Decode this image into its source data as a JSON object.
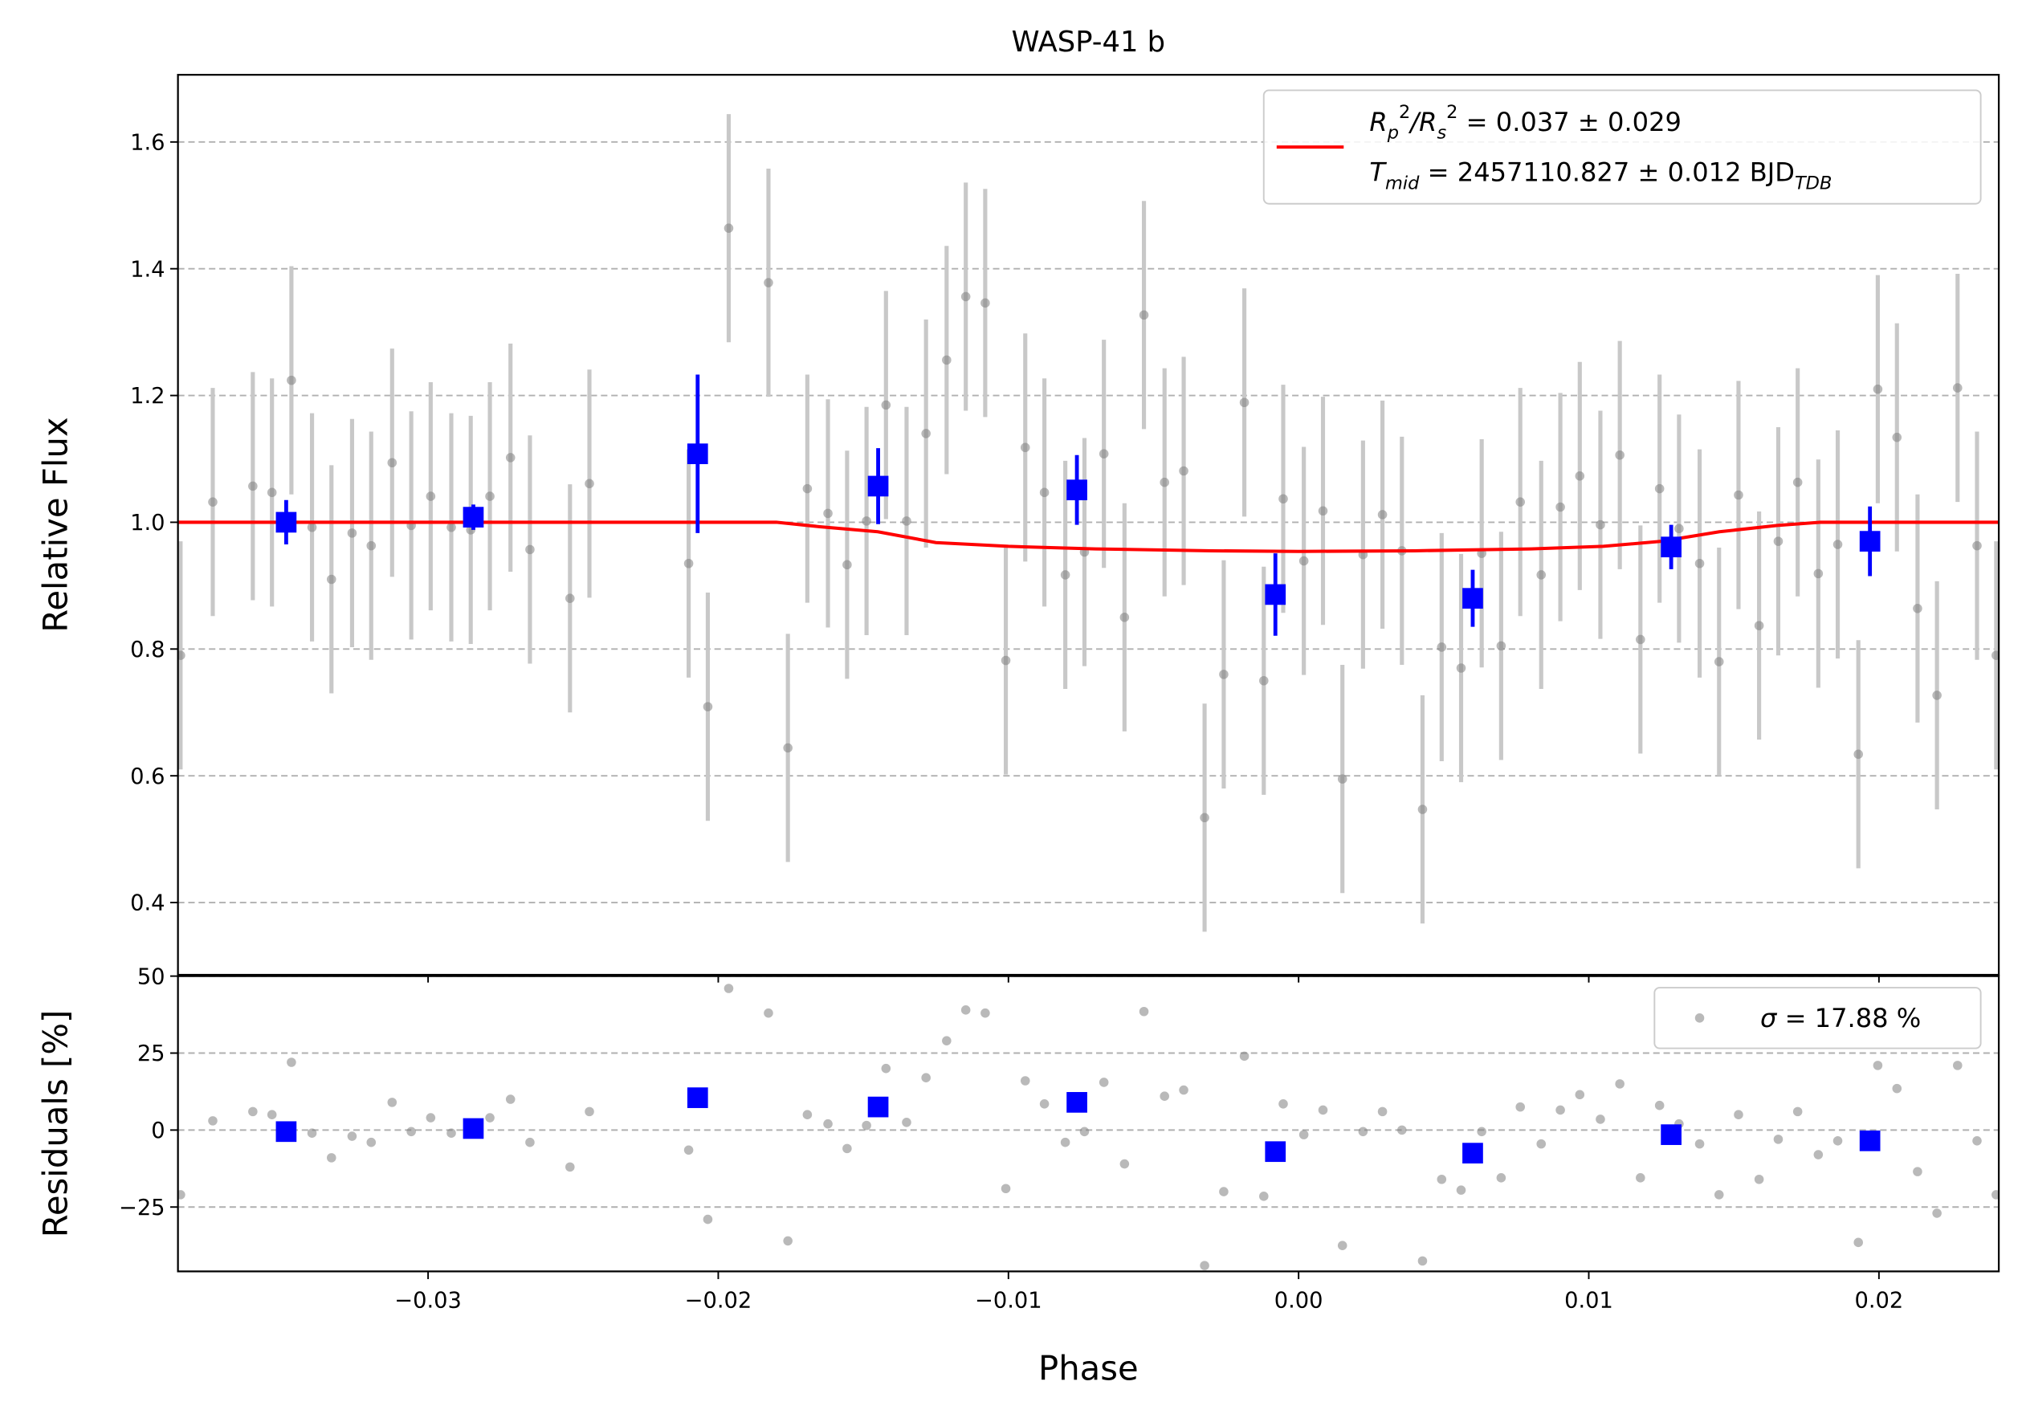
{
  "chart_data": [
    {
      "type": "scatter",
      "title": "WASP-41 b",
      "ylabel": "Relative Flux",
      "xlim": [
        -0.03862,
        0.02413
      ],
      "ylim": [
        0.286,
        1.706
      ],
      "yticks": [
        0.4,
        0.6,
        0.8,
        {
          "value": 1,
          "label": "1.0"
        },
        1.2,
        1.4,
        1.6
      ],
      "grid": true,
      "legend": "upper right",
      "series": [
        {
          "color": "#808080",
          "marker": "circle",
          "x": [
            -0.03853,
            -0.03742,
            -0.03604,
            -0.03538,
            -0.03471,
            -0.034,
            -0.03333,
            -0.03262,
            -0.03196,
            -0.03124,
            -0.03058,
            -0.02991,
            -0.0292,
            -0.02853,
            -0.02787,
            -0.02716,
            -0.02649,
            -0.02511,
            -0.02444,
            -0.02102,
            -0.02036,
            -0.01964,
            -0.01827,
            -0.0176,
            -0.01693,
            -0.01622,
            -0.01556,
            -0.01489,
            -0.01422,
            -0.01351,
            -0.01284,
            -0.01213,
            -0.01147,
            -0.0108,
            -0.01009,
            -0.00942,
            -0.00876,
            -0.00804,
            -0.00738,
            -0.00671,
            -0.006,
            -0.00533,
            -0.00462,
            -0.00396,
            -0.00324,
            -0.00258,
            -0.00187,
            -0.0012,
            -0.00053,
            0.00018,
            0.00084,
            0.00151,
            0.00222,
            0.00289,
            0.00356,
            0.00427,
            0.00493,
            0.0056,
            0.00631,
            0.00698,
            0.00764,
            0.00836,
            0.00902,
            0.00969,
            0.0104,
            0.01107,
            0.01178,
            0.01244,
            0.01311,
            0.01382,
            0.01449,
            0.01516,
            0.01587,
            0.01653,
            0.0172,
            0.01791,
            0.01858,
            0.01929,
            0.01996,
            0.02062,
            0.02133,
            0.022,
            0.02271,
            0.02338,
            0.02404
          ],
          "values": [
            0.79,
            1.032,
            1.057,
            1.047,
            1.224,
            0.992,
            0.91,
            0.983,
            0.963,
            1.094,
            0.995,
            1.041,
            0.992,
            0.988,
            1.041,
            1.102,
            0.957,
            0.88,
            1.061,
            0.935,
            0.709,
            1.464,
            1.378,
            0.644,
            1.053,
            1.014,
            0.933,
            1.002,
            1.185,
            1.002,
            1.14,
            1.256,
            1.356,
            1.346,
            0.782,
            1.118,
            1.047,
            0.917,
            0.953,
            1.108,
            0.85,
            1.327,
            1.063,
            1.081,
            0.534,
            0.76,
            1.189,
            0.75,
            1.037,
            0.939,
            1.018,
            0.595,
            0.949,
            1.012,
            0.955,
            0.547,
            0.803,
            0.77,
            0.951,
            0.805,
            1.032,
            0.917,
            1.024,
            1.073,
            0.996,
            1.106,
            0.815,
            1.053,
            0.99,
            0.935,
            0.78,
            1.043,
            0.837,
            0.97,
            1.063,
            0.919,
            0.965,
            0.634,
            1.21,
            1.134,
            0.864,
            0.727,
            1.212,
            0.963,
            0.79
          ],
          "errors": [
            0.18,
            0.18,
            0.18,
            0.18,
            0.18,
            0.18,
            0.18,
            0.18,
            0.18,
            0.18,
            0.18,
            0.18,
            0.18,
            0.18,
            0.18,
            0.18,
            0.18,
            0.18,
            0.18,
            0.18,
            0.18,
            0.18,
            0.18,
            0.18,
            0.18,
            0.18,
            0.18,
            0.18,
            0.18,
            0.18,
            0.18,
            0.18,
            0.18,
            0.18,
            0.18,
            0.18,
            0.18,
            0.18,
            0.18,
            0.18,
            0.18,
            0.18,
            0.18,
            0.18,
            0.18,
            0.18,
            0.18,
            0.18,
            0.18,
            0.18,
            0.18,
            0.18,
            0.18,
            0.18,
            0.18,
            0.18,
            0.18,
            0.18,
            0.18,
            0.18,
            0.18,
            0.18,
            0.18,
            0.18,
            0.18,
            0.18,
            0.18,
            0.18,
            0.18,
            0.18,
            0.18,
            0.18,
            0.18,
            0.18,
            0.18,
            0.18,
            0.18,
            0.18,
            0.18,
            0.18,
            0.18,
            0.18,
            0.18,
            0.18,
            0.18
          ]
        },
        {
          "type": "line",
          "color": "#ff0000",
          "x": [
            -0.03862,
            -0.018,
            -0.0165,
            -0.0145,
            -0.0125,
            -0.01,
            -0.007,
            -0.003,
            0,
            0.004,
            0.008,
            0.0105,
            0.0125,
            0.0145,
            0.0165,
            0.018,
            0.02413
          ],
          "values": [
            1,
            1,
            0.993,
            0.985,
            0.968,
            0.962,
            0.958,
            0.955,
            0.954,
            0.955,
            0.958,
            0.962,
            0.97,
            0.985,
            0.995,
            1,
            1
          ],
          "label_lines": [
            [
              {
                "text": "R",
                "style": "it"
              },
              {
                "text": "p",
                "style": "sub"
              },
              {
                "text": "2",
                "style": "sup"
              },
              {
                "text": "/",
                "style": "it"
              },
              {
                "text": "R",
                "style": "it"
              },
              {
                "text": "s",
                "style": "sub"
              },
              {
                "text": "2",
                "style": "sup"
              },
              {
                "text": " = 0.037 ± 0.029",
                "style": "rm"
              }
            ],
            [
              {
                "text": "T",
                "style": "it"
              },
              {
                "text": "mid",
                "style": "sub"
              },
              {
                "text": " = 2457110.827 ± 0.012 BJD",
                "style": "rm"
              },
              {
                "text": "TDB",
                "style": "sub"
              }
            ]
          ]
        },
        {
          "color": "#0000ff",
          "marker": "square",
          "x": [
            -0.03489,
            -0.02844,
            -0.02071,
            -0.01449,
            -0.00764,
            -0.0008,
            0.006,
            0.01284,
            0.01969
          ],
          "values": [
            1.0,
            1.008,
            1.108,
            1.057,
            1.051,
            0.886,
            0.88,
            0.961,
            0.97
          ],
          "errors": [
            0.035,
            0.02,
            0.125,
            0.06,
            0.055,
            0.065,
            0.045,
            0.035,
            0.055
          ]
        }
      ]
    },
    {
      "type": "scatter",
      "ylabel": "Residuals [%]",
      "xlabel": "Phase",
      "xlim": [
        -0.03862,
        0.02413
      ],
      "ylim": [
        -45.9,
        50
      ],
      "xticks": [
        {
          "value": -0.03,
          "label": "−0.03"
        },
        {
          "value": -0.02,
          "label": "−0.02"
        },
        {
          "value": -0.01,
          "label": "−0.01"
        },
        {
          "value": 0,
          "label": "0.00"
        },
        0.01,
        0.02
      ],
      "yticks": [
        {
          "value": -25,
          "label": "−25"
        },
        0,
        25,
        50
      ],
      "grid": true,
      "legend": "upper right",
      "series": [
        {
          "color": "#808080",
          "marker": "circle",
          "x": [
            -0.03853,
            -0.03742,
            -0.03604,
            -0.03538,
            -0.03471,
            -0.034,
            -0.03333,
            -0.03262,
            -0.03196,
            -0.03124,
            -0.03058,
            -0.02991,
            -0.0292,
            -0.02853,
            -0.02787,
            -0.02716,
            -0.02649,
            -0.02511,
            -0.02444,
            -0.02102,
            -0.02036,
            -0.01964,
            -0.01827,
            -0.0176,
            -0.01693,
            -0.01622,
            -0.01556,
            -0.01489,
            -0.01422,
            -0.01351,
            -0.01284,
            -0.01213,
            -0.01147,
            -0.0108,
            -0.01009,
            -0.00942,
            -0.00876,
            -0.00804,
            -0.00738,
            -0.00671,
            -0.006,
            -0.00533,
            -0.00462,
            -0.00396,
            -0.00324,
            -0.00258,
            -0.00187,
            -0.0012,
            -0.00053,
            0.00018,
            0.00084,
            0.00151,
            0.00222,
            0.00289,
            0.00356,
            0.00427,
            0.00493,
            0.0056,
            0.00631,
            0.00698,
            0.00764,
            0.00836,
            0.00902,
            0.00969,
            0.0104,
            0.01107,
            0.01178,
            0.01244,
            0.01311,
            0.01382,
            0.01449,
            0.01516,
            0.01587,
            0.01653,
            0.0172,
            0.01791,
            0.01858,
            0.01929,
            0.01996,
            0.02062,
            0.02133,
            0.022,
            0.02271,
            0.02338,
            0.02404
          ],
          "values": [
            -21,
            3,
            6,
            5,
            22,
            -1,
            -9,
            -2,
            -4,
            9,
            -0.5,
            4,
            -1,
            -1,
            4,
            10,
            -4,
            -12,
            6,
            -6.5,
            -29,
            46,
            38,
            -36,
            5,
            2,
            -6,
            1.5,
            20,
            2.5,
            17,
            29,
            39,
            38,
            -19,
            16,
            8.5,
            -4,
            -0.5,
            15.5,
            -11,
            38.5,
            11,
            13,
            -44,
            -20,
            24,
            -21.5,
            8.5,
            -1.5,
            6.5,
            -37.5,
            -0.5,
            6,
            0,
            -42.5,
            -16,
            -19.5,
            -0.5,
            -15.5,
            7.5,
            -4.5,
            6.5,
            11.5,
            3.5,
            15,
            -15.5,
            8,
            2,
            -4.5,
            -21,
            5,
            -16,
            -3,
            6,
            -8,
            -3.5,
            -36.5,
            21,
            13.5,
            -13.5,
            -27,
            21,
            -3.5,
            -21
          ],
          "label_lines": [
            [
              {
                "text": "σ",
                "style": "it"
              },
              {
                "text": " = 17.88 %",
                "style": "rm"
              }
            ]
          ]
        },
        {
          "color": "#0000ff",
          "marker": "square",
          "x": [
            -0.03489,
            -0.02844,
            -0.02071,
            -0.01449,
            -0.00764,
            -0.0008,
            0.006,
            0.01284,
            0.01969
          ],
          "values": [
            -0.5,
            0.5,
            10.5,
            7.5,
            9,
            -7,
            -7.5,
            -1.5,
            -3.5
          ]
        }
      ]
    }
  ]
}
